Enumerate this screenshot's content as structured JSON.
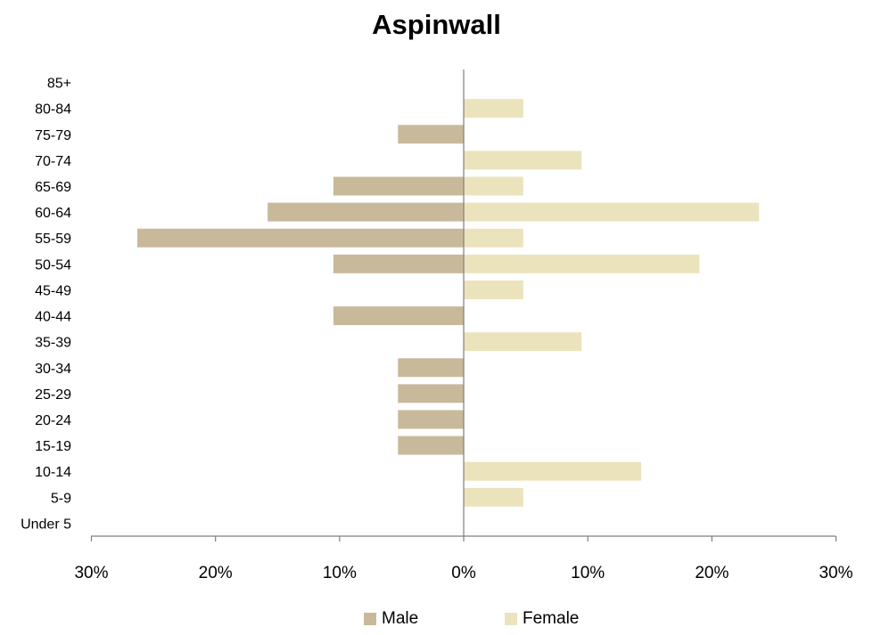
{
  "chart_data": {
    "type": "bar",
    "orientation": "horizontal",
    "title": "Aspinwall",
    "categories": [
      "Under 5",
      "5-9",
      "10-14",
      "15-19",
      "20-24",
      "25-29",
      "30-34",
      "35-39",
      "40-44",
      "45-49",
      "50-54",
      "55-59",
      "60-64",
      "65-69",
      "70-74",
      "75-79",
      "80-84",
      "85+"
    ],
    "series": [
      {
        "name": "Male",
        "color": "#c8b99a",
        "values": [
          0,
          0,
          0,
          5.3,
          5.3,
          5.3,
          5.3,
          0,
          10.5,
          0,
          10.5,
          26.3,
          15.8,
          10.5,
          0,
          5.3,
          0,
          0
        ]
      },
      {
        "name": "Female",
        "color": "#ebe3bc",
        "values": [
          0,
          4.8,
          14.3,
          0,
          0,
          0,
          0,
          9.5,
          0,
          4.8,
          19.0,
          4.8,
          23.8,
          4.8,
          9.5,
          0,
          4.8,
          0
        ]
      }
    ],
    "x_ticks": [
      "30%",
      "20%",
      "10%",
      "0%",
      "10%",
      "20%",
      "30%"
    ],
    "xlim": [
      -30,
      30
    ],
    "unit": "%",
    "grid": false,
    "legend_position": "bottom"
  }
}
